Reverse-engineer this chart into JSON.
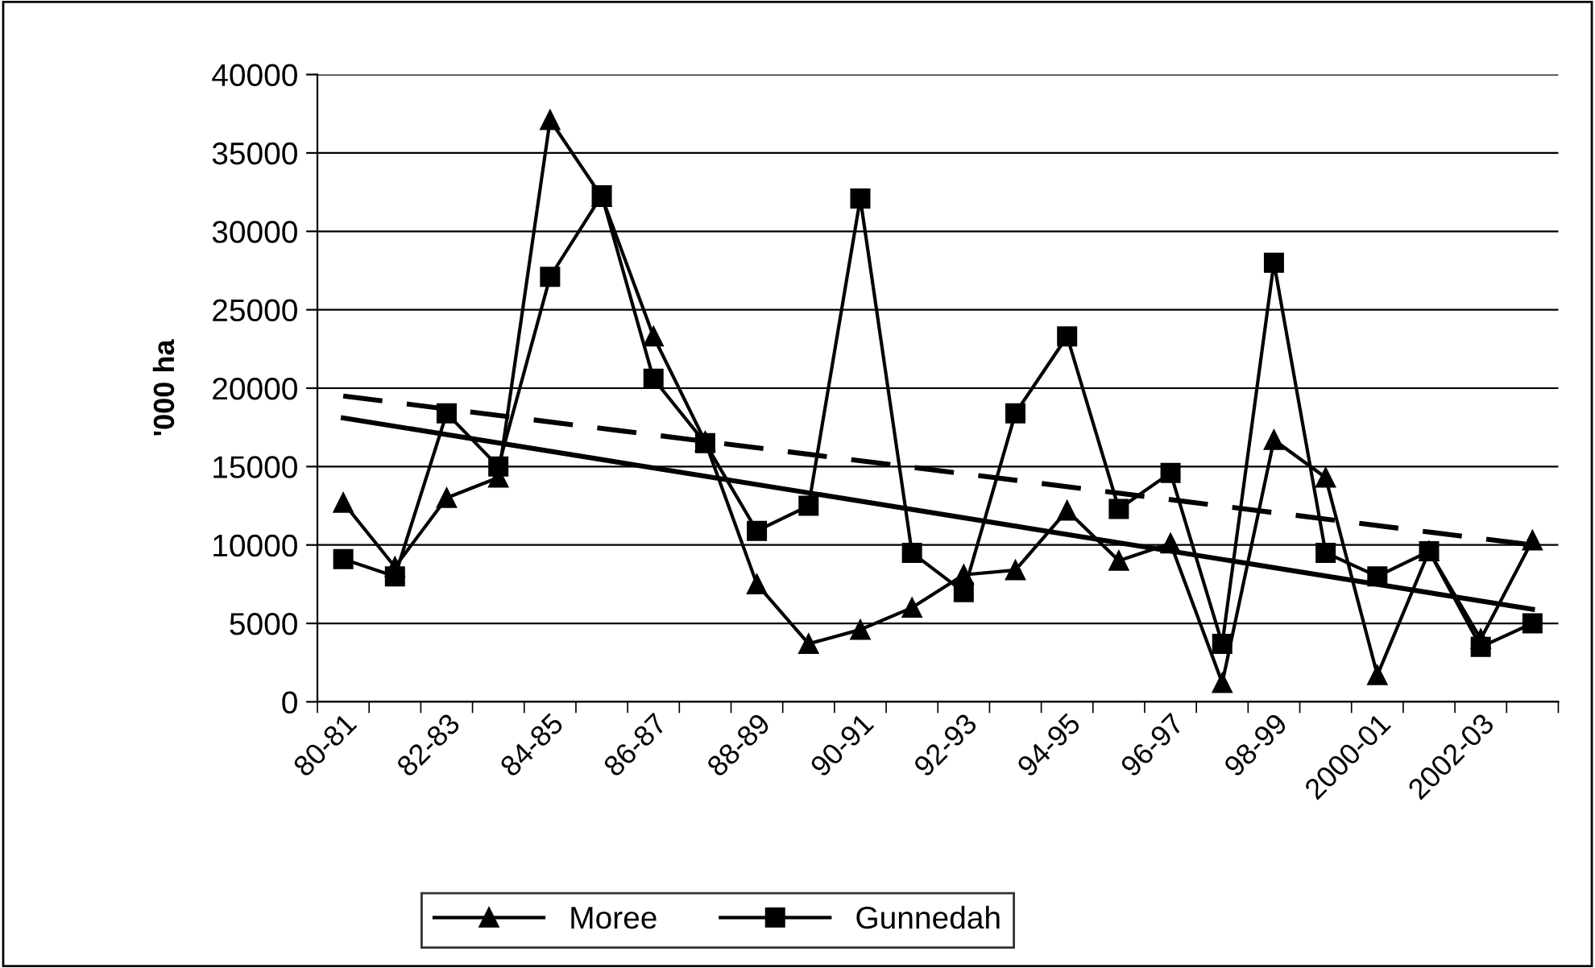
{
  "chart_data": {
    "type": "line",
    "ylabel": "'000 ha",
    "categories": [
      "80-81",
      null,
      "82-83",
      null,
      "84-85",
      null,
      "86-87",
      null,
      "88-89",
      null,
      "90-91",
      null,
      "92-93",
      null,
      "94-95",
      null,
      "96-97",
      null,
      "98-99",
      null,
      "2000-01",
      null,
      "2002-03",
      null
    ],
    "series": [
      {
        "name": "Moree",
        "color": "#000000",
        "marker": "triangle",
        "line_style": "solid",
        "values": [
          12700,
          8600,
          13000,
          14300,
          37100,
          32200,
          23300,
          16600,
          7500,
          3700,
          4600,
          6000,
          8100,
          8400,
          12200,
          9000,
          10100,
          1200,
          16700,
          14300,
          1700,
          9600,
          4000,
          10300
        ]
      },
      {
        "name": "Gunnedah",
        "color": "#000000",
        "marker": "square",
        "line_style": "solid",
        "values": [
          9100,
          8000,
          18400,
          15000,
          27100,
          32300,
          20600,
          16500,
          10900,
          12500,
          32100,
          9500,
          7000,
          18400,
          23300,
          12300,
          14600,
          3700,
          28000,
          9500,
          8000,
          9600,
          3500,
          5000
        ]
      },
      {
        "color": "#000000",
        "marker": "none",
        "line_style": "solid",
        "values": [
          18100,
          null,
          null,
          null,
          null,
          null,
          null,
          null,
          null,
          null,
          null,
          null,
          null,
          null,
          null,
          null,
          null,
          null,
          null,
          null,
          null,
          null,
          null,
          5900
        ]
      },
      {
        "color": "#000000",
        "marker": "none",
        "line_style": "dashed",
        "values": [
          19500,
          null,
          null,
          null,
          null,
          null,
          null,
          null,
          null,
          null,
          null,
          null,
          null,
          null,
          null,
          null,
          null,
          null,
          null,
          null,
          null,
          null,
          null,
          10000
        ]
      }
    ],
    "ylim": [
      0,
      40000
    ],
    "yticks": [
      0,
      5000,
      10000,
      15000,
      20000,
      25000,
      30000,
      35000,
      40000
    ],
    "grid": "y",
    "legend": "bottom"
  }
}
